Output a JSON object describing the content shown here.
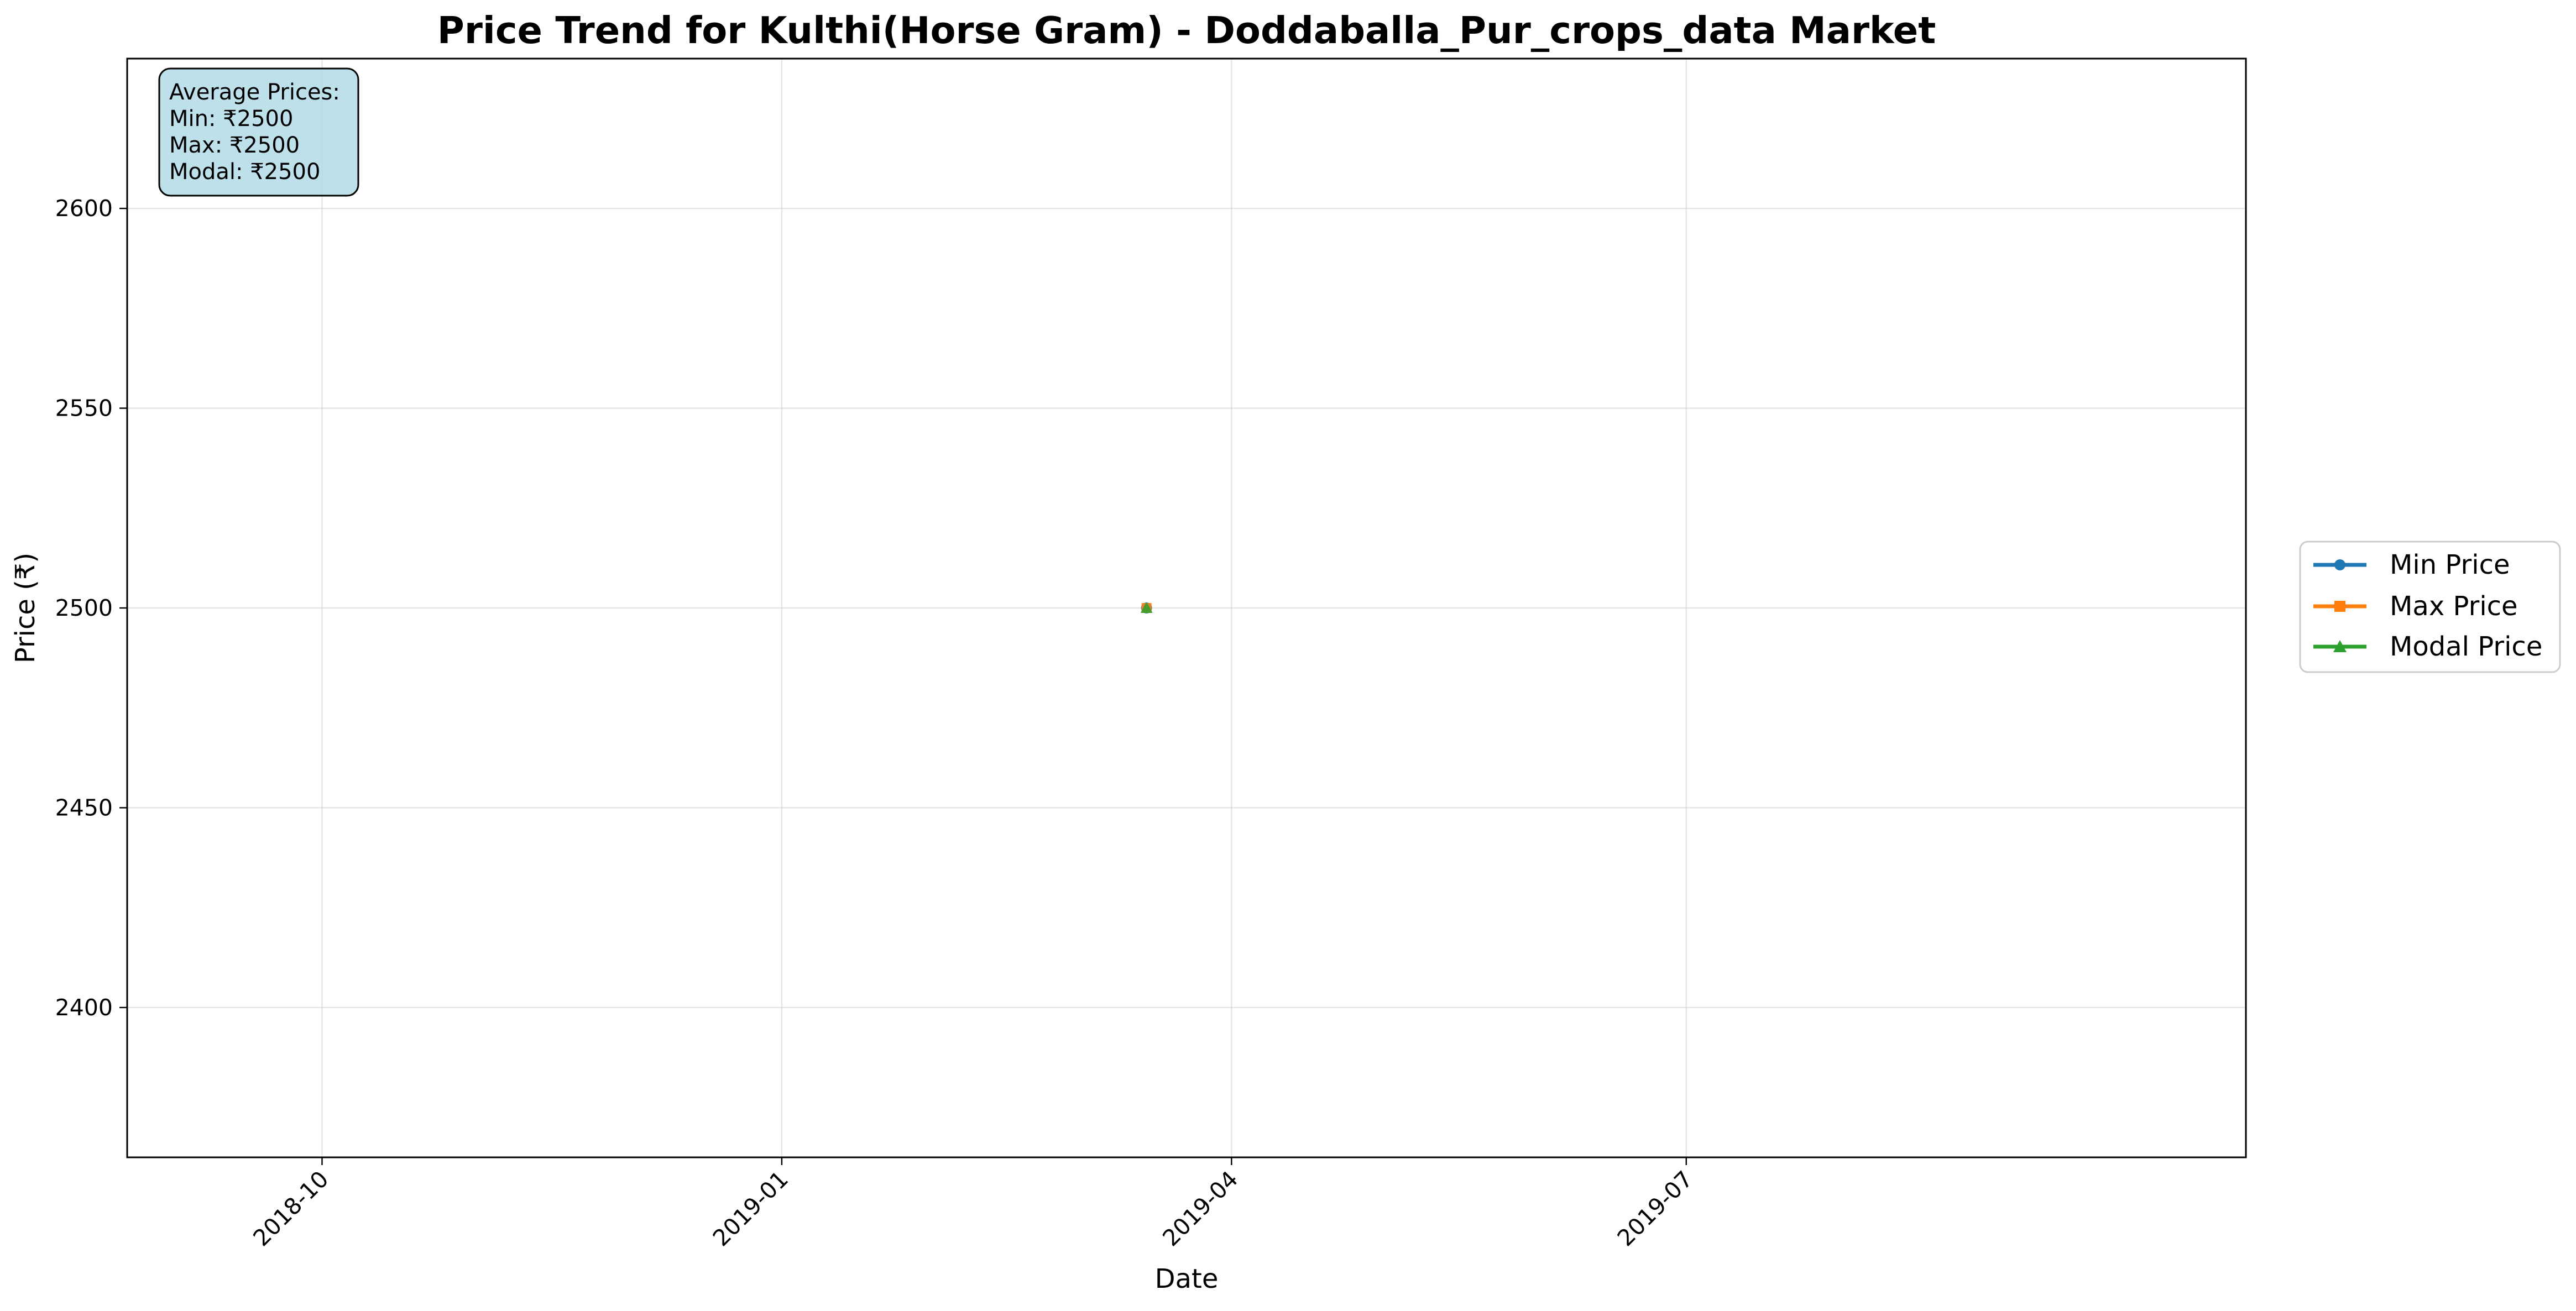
{
  "chart_data": {
    "type": "line",
    "title": "Price Trend for Kulthi(Horse Gram) - Doddaballa_Pur_crops_data Market",
    "xlabel": "Date",
    "ylabel": "Price (₹)",
    "x_ticks": [
      "2018-10",
      "2019-01",
      "2019-04",
      "2019-07"
    ],
    "y_ticks": [
      2400,
      2450,
      2500,
      2550,
      2600
    ],
    "xlim": [
      "2018-08-23",
      "2019-10-21"
    ],
    "ylim": [
      2362.5,
      2637.5
    ],
    "x": [
      "2019-03-15"
    ],
    "series": [
      {
        "name": "Min Price",
        "values": [
          2500
        ],
        "color": "#1f77b4",
        "marker": "circle"
      },
      {
        "name": "Max Price",
        "values": [
          2500
        ],
        "color": "#ff7f0e",
        "marker": "square"
      },
      {
        "name": "Modal Price",
        "values": [
          2500
        ],
        "color": "#2ca02c",
        "marker": "triangle"
      }
    ],
    "grid": true,
    "legend_position": "outside-right",
    "annotation": {
      "heading": "Average Prices:",
      "lines": [
        "Min: ₹2500",
        "Max: ₹2500",
        "Modal: ₹2500"
      ],
      "background": "#add8e6"
    }
  }
}
